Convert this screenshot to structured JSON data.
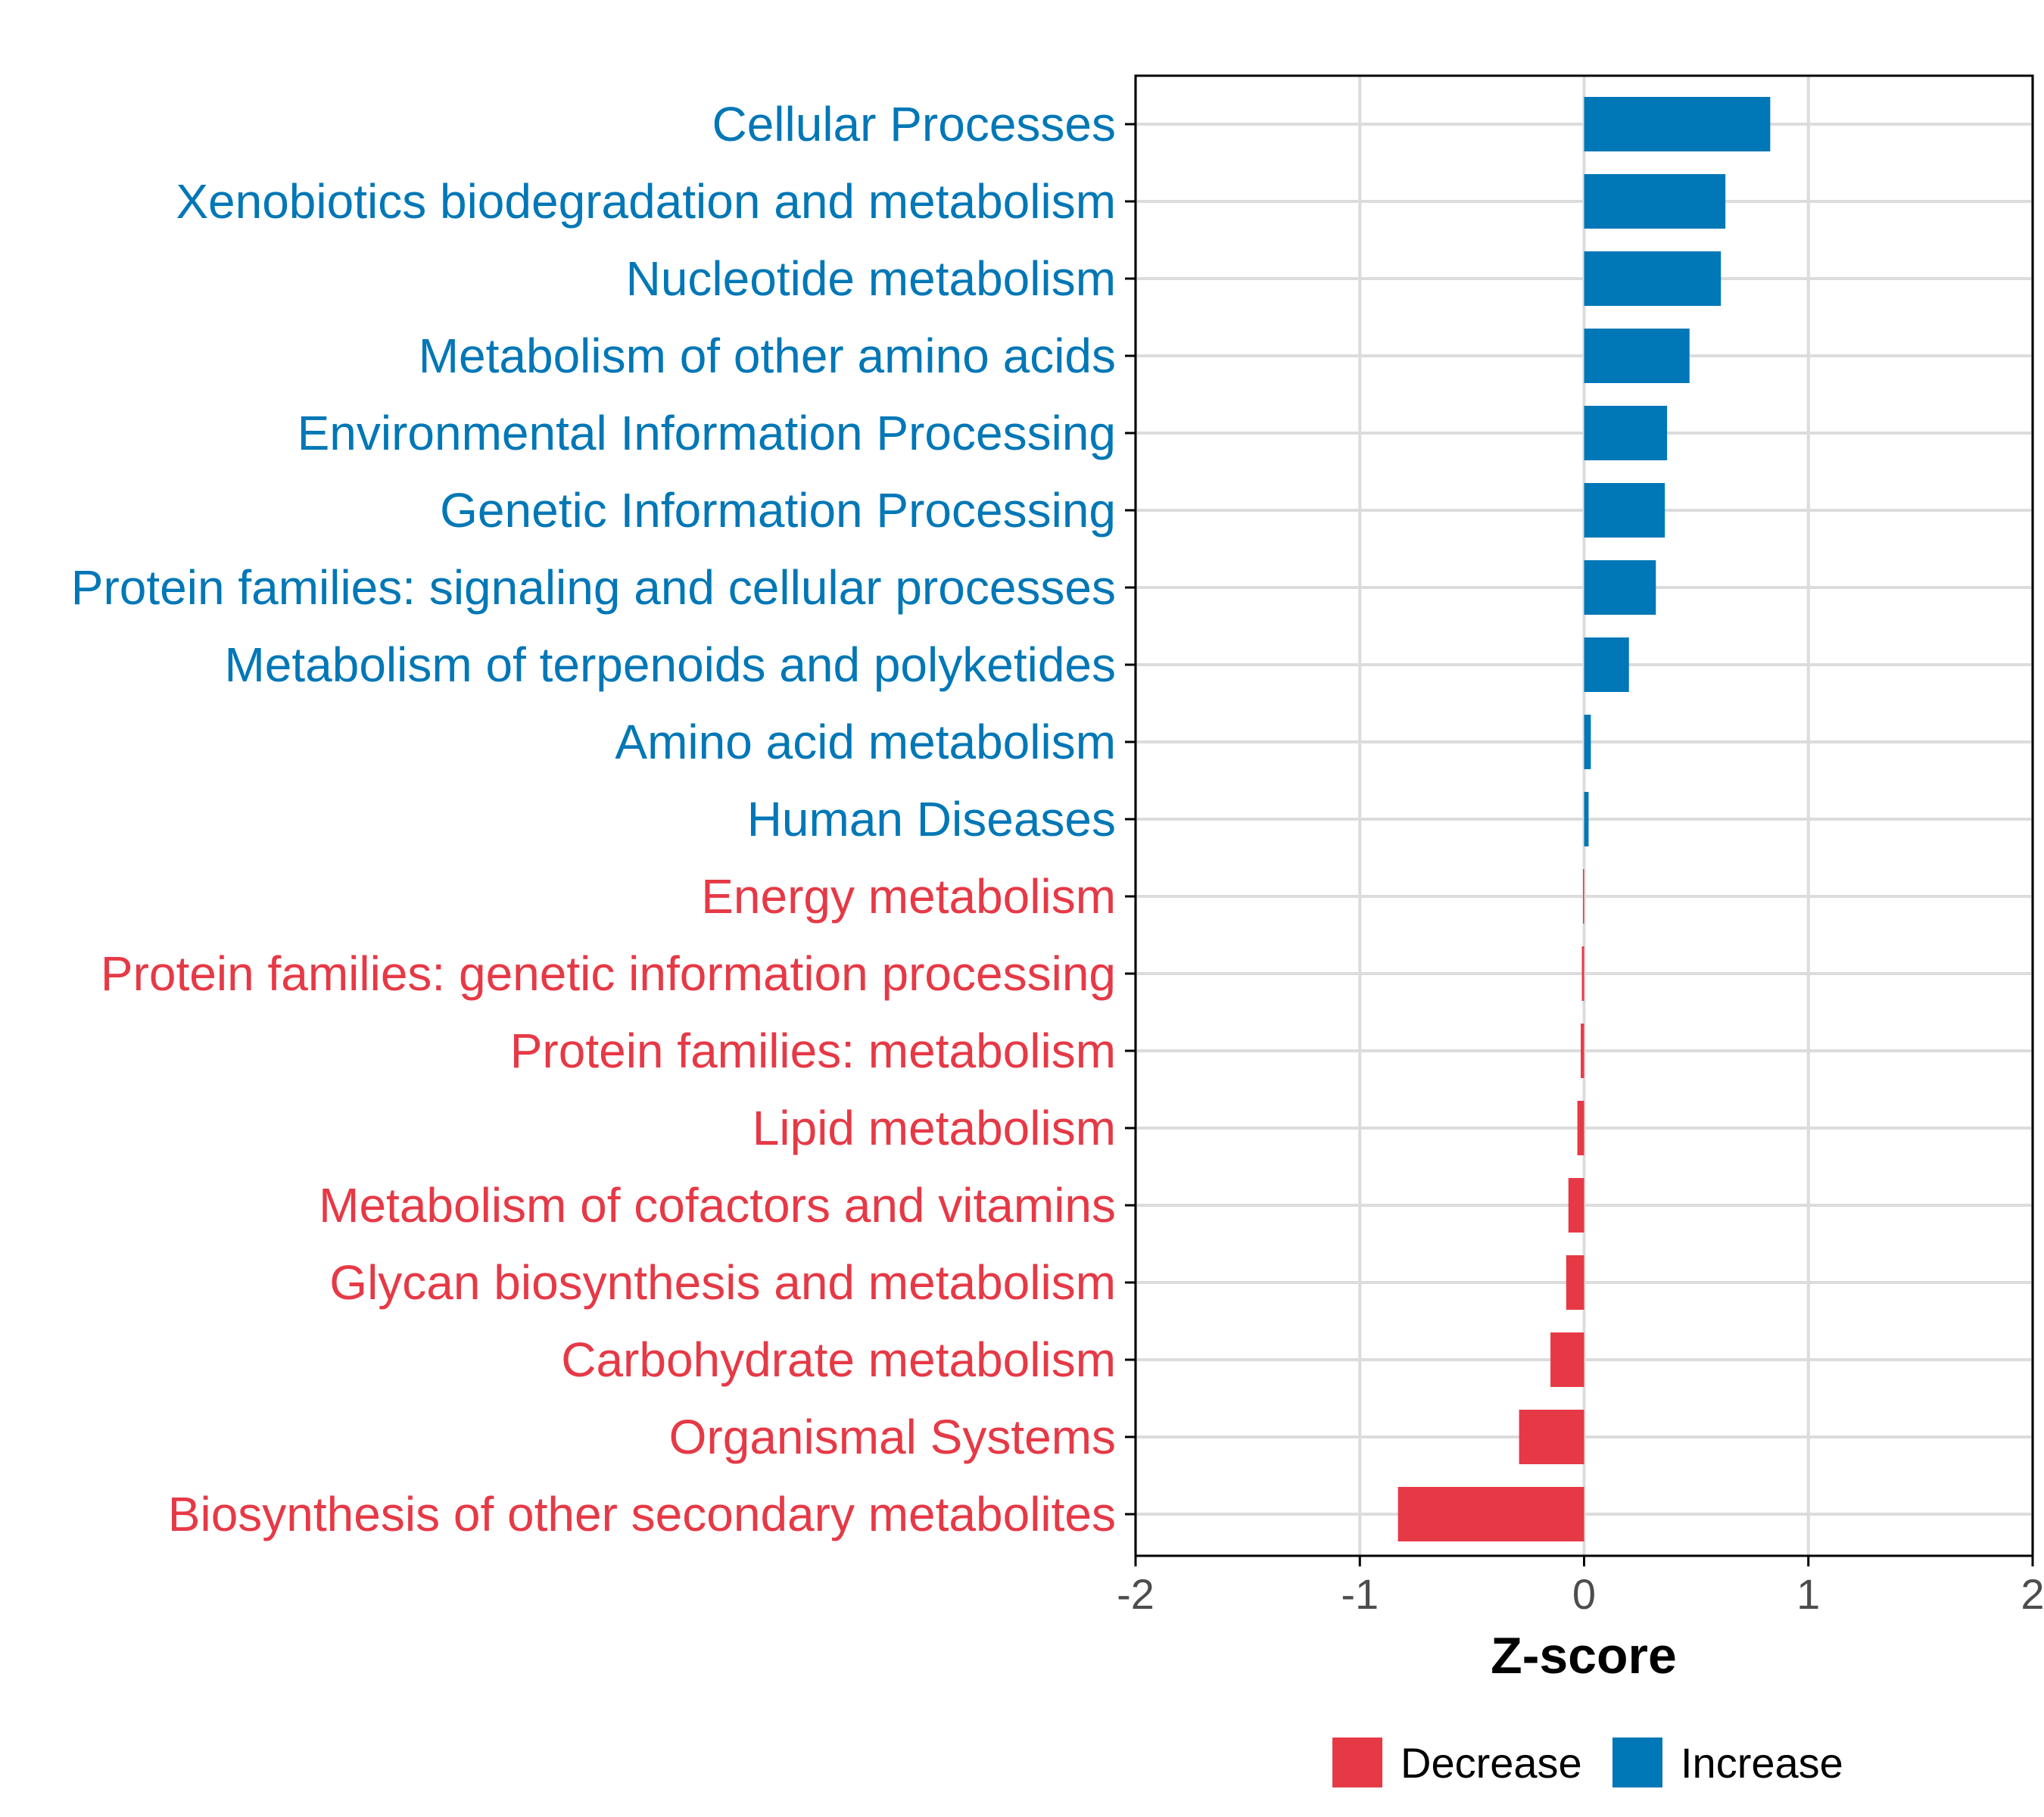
{
  "chart_data": {
    "type": "bar",
    "orientation": "horizontal",
    "title": "",
    "xlabel": "Z-score",
    "ylabel": "",
    "xlim": [
      -2,
      2
    ],
    "xticks": [
      -2,
      -1,
      0,
      1,
      2
    ],
    "grid": true,
    "legend_position": "bottom",
    "categories": [
      "Cellular Processes",
      "Xenobiotics biodegradation and metabolism",
      "Nucleotide metabolism",
      "Metabolism of other amino acids",
      "Environmental Information Processing",
      "Genetic Information Processing",
      "Protein families: signaling and cellular processes",
      "Metabolism of terpenoids and polyketides",
      "Amino acid metabolism",
      "Human Diseases",
      "Energy metabolism",
      "Protein families: genetic information processing",
      "Protein families: metabolism",
      "Lipid metabolism",
      "Metabolism of cofactors and vitamins",
      "Glycan biosynthesis and metabolism",
      "Carbohydrate metabolism",
      "Organismal Systems",
      "Biosynthesis of other secondary metabolites"
    ],
    "values": [
      0.83,
      0.63,
      0.61,
      0.47,
      0.37,
      0.36,
      0.32,
      0.2,
      0.03,
      0.02,
      -0.005,
      -0.01,
      -0.015,
      -0.03,
      -0.07,
      -0.08,
      -0.15,
      -0.29,
      -0.83
    ],
    "groups": [
      "Increase",
      "Increase",
      "Increase",
      "Increase",
      "Increase",
      "Increase",
      "Increase",
      "Increase",
      "Increase",
      "Increase",
      "Decrease",
      "Decrease",
      "Decrease",
      "Decrease",
      "Decrease",
      "Decrease",
      "Decrease",
      "Decrease",
      "Decrease"
    ],
    "legend": [
      {
        "label": "Decrease",
        "color": "#e63946"
      },
      {
        "label": "Increase",
        "color": "#0077b6"
      }
    ],
    "colors": {
      "Increase": "#0077b6",
      "Decrease": "#e63946",
      "grid": "#dcdcdc",
      "axis": "#000000"
    }
  }
}
